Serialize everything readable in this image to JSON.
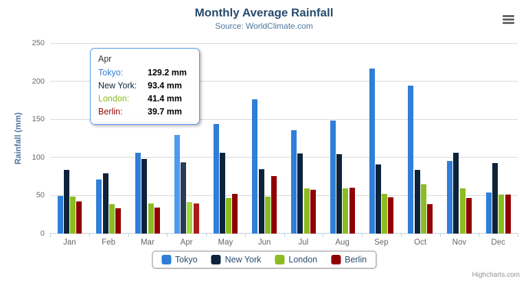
{
  "title": "Monthly Average Rainfall",
  "subtitle": "Source: WorldClimate.com",
  "credits_label": "Highcharts.com",
  "menu_icon": "hamburger-export-menu-icon",
  "colors": {
    "title": "#274b6d",
    "subtitle": "#4d759e",
    "axis_labels": "#666666",
    "axis_line": "#c0d0e0",
    "gridline": "#d8d8d8",
    "legend_border": "#909090",
    "credits": "#909090"
  },
  "chart_data": {
    "type": "bar",
    "title": "Monthly Average Rainfall",
    "subtitle": "Source: WorldClimate.com",
    "categories": [
      "Jan",
      "Feb",
      "Mar",
      "Apr",
      "May",
      "Jun",
      "Jul",
      "Aug",
      "Sep",
      "Oct",
      "Nov",
      "Dec"
    ],
    "series": [
      {
        "name": "Tokyo",
        "color": "#2f7ed8",
        "hover_color": "#4e9af0",
        "values": [
          49.9,
          71.5,
          106.4,
          129.2,
          144.0,
          176.0,
          135.6,
          148.5,
          216.4,
          194.1,
          95.6,
          54.4
        ]
      },
      {
        "name": "New York",
        "color": "#0d233a",
        "hover_color": "#273d54",
        "values": [
          83.6,
          78.8,
          98.5,
          93.4,
          106.0,
          84.5,
          105.0,
          104.3,
          91.2,
          83.5,
          106.6,
          92.3
        ]
      },
      {
        "name": "London",
        "color": "#8bbc21",
        "hover_color": "#a5d63b",
        "values": [
          48.9,
          38.8,
          39.3,
          41.4,
          47.0,
          48.3,
          59.0,
          59.6,
          52.4,
          65.2,
          59.3,
          51.2
        ]
      },
      {
        "name": "Berlin",
        "color": "#910000",
        "hover_color": "#ab1a1a",
        "values": [
          42.4,
          33.2,
          34.5,
          39.7,
          52.6,
          75.5,
          57.4,
          60.4,
          47.6,
          39.1,
          46.8,
          51.1
        ]
      }
    ],
    "xlabel": "",
    "ylabel": "Rainfall (mm)",
    "ylim": [
      0,
      250
    ],
    "ytick_step": 50,
    "grid": true,
    "legend_position": "bottom",
    "hovered_category_index": 3,
    "hovered_category": "Apr"
  },
  "tooltip": {
    "header": "Apr",
    "rows": [
      {
        "label": "Tokyo:",
        "value": "129.2 mm",
        "color": "#2f7ed8"
      },
      {
        "label": "New York:",
        "value": "93.4 mm",
        "color": "#0d233a"
      },
      {
        "label": "London:",
        "value": "41.4 mm",
        "color": "#8bbc21"
      },
      {
        "label": "Berlin:",
        "value": "39.7 mm",
        "color": "#910000"
      }
    ]
  }
}
